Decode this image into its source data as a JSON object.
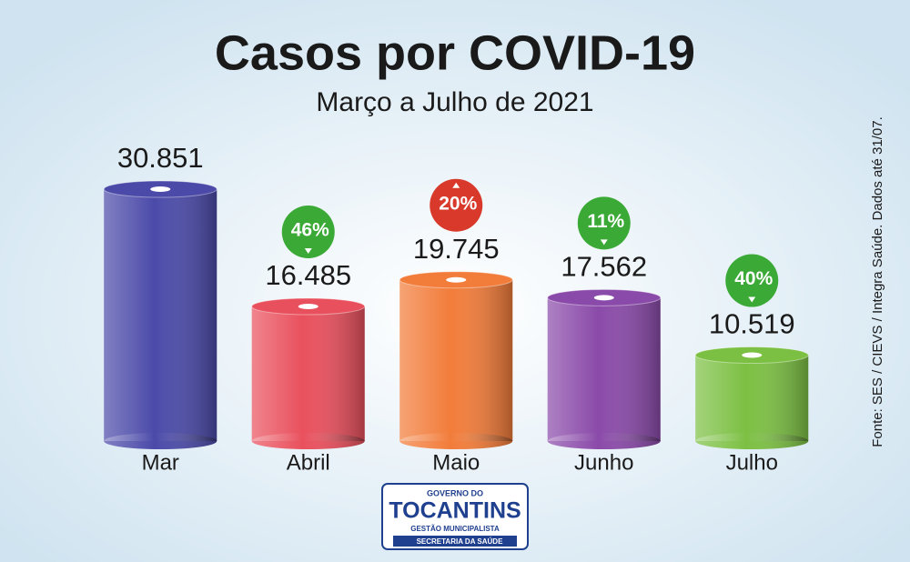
{
  "chart_data": {
    "type": "bar",
    "title": "Casos por COVID-19",
    "subtitle": "Março a Julho de 2021",
    "categories": [
      "Mar",
      "Abril",
      "Maio",
      "Junho",
      "Julho"
    ],
    "values": [
      30851,
      16485,
      19745,
      17562,
      10519
    ],
    "value_labels": [
      "30.851",
      "16.485",
      "19.745",
      "17.562",
      "10.519"
    ],
    "colors": [
      "#4b4aa9",
      "#e9505d",
      "#f27c3a",
      "#8a4aa9",
      "#7cc043"
    ],
    "changes": [
      null,
      46,
      20,
      11,
      40
    ],
    "change_labels": [
      null,
      "46%",
      "20%",
      "11%",
      "40%"
    ],
    "change_directions": [
      null,
      "down",
      "up",
      "down",
      "down"
    ],
    "source": "Fonte: SES / CIEVS / Integra Saúde. Dados até 31/07."
  },
  "logo": {
    "top": "GOVERNO DO",
    "name": "TOCANTINS",
    "tagline": "GESTÃO MUNICIPALISTA",
    "department": "SECRETARIA DA SAÚDE"
  }
}
